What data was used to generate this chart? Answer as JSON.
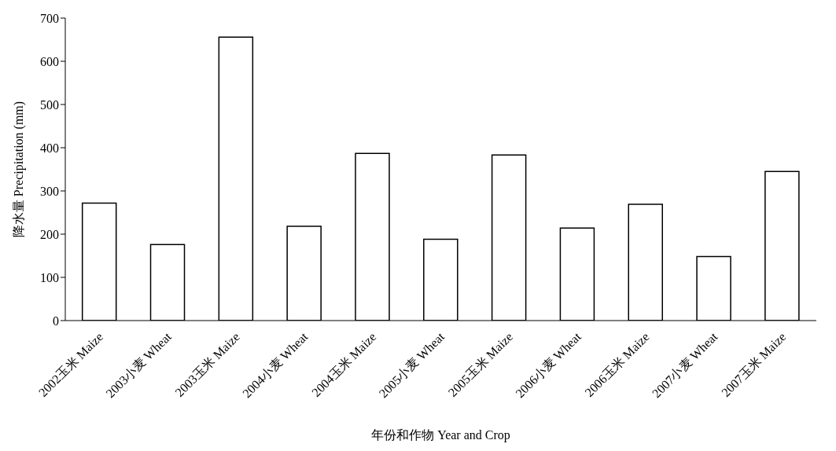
{
  "chart_data": {
    "type": "bar",
    "xlabel": "年份和作物 Year and Crop",
    "ylabel": "降水量 Precipitation (mm)",
    "categories": [
      "2002玉米 Maize",
      "2003小麦 Wheat",
      "2003玉米 Maize",
      "2004小麦 Wheat",
      "2004玉米 Maize",
      "2005小麦 Wheat",
      "2005玉米 Maize",
      "2006小麦 Wheat",
      "2006玉米 Maize",
      "2007小麦 Wheat",
      "2007玉米 Maize"
    ],
    "values": [
      272,
      176,
      656,
      218,
      387,
      188,
      383,
      214,
      269,
      148,
      345
    ],
    "color": "#ffffff",
    "ylim": [
      0,
      700
    ],
    "yticks": [
      0,
      100,
      200,
      300,
      400,
      500,
      600,
      700
    ],
    "grid": false
  }
}
